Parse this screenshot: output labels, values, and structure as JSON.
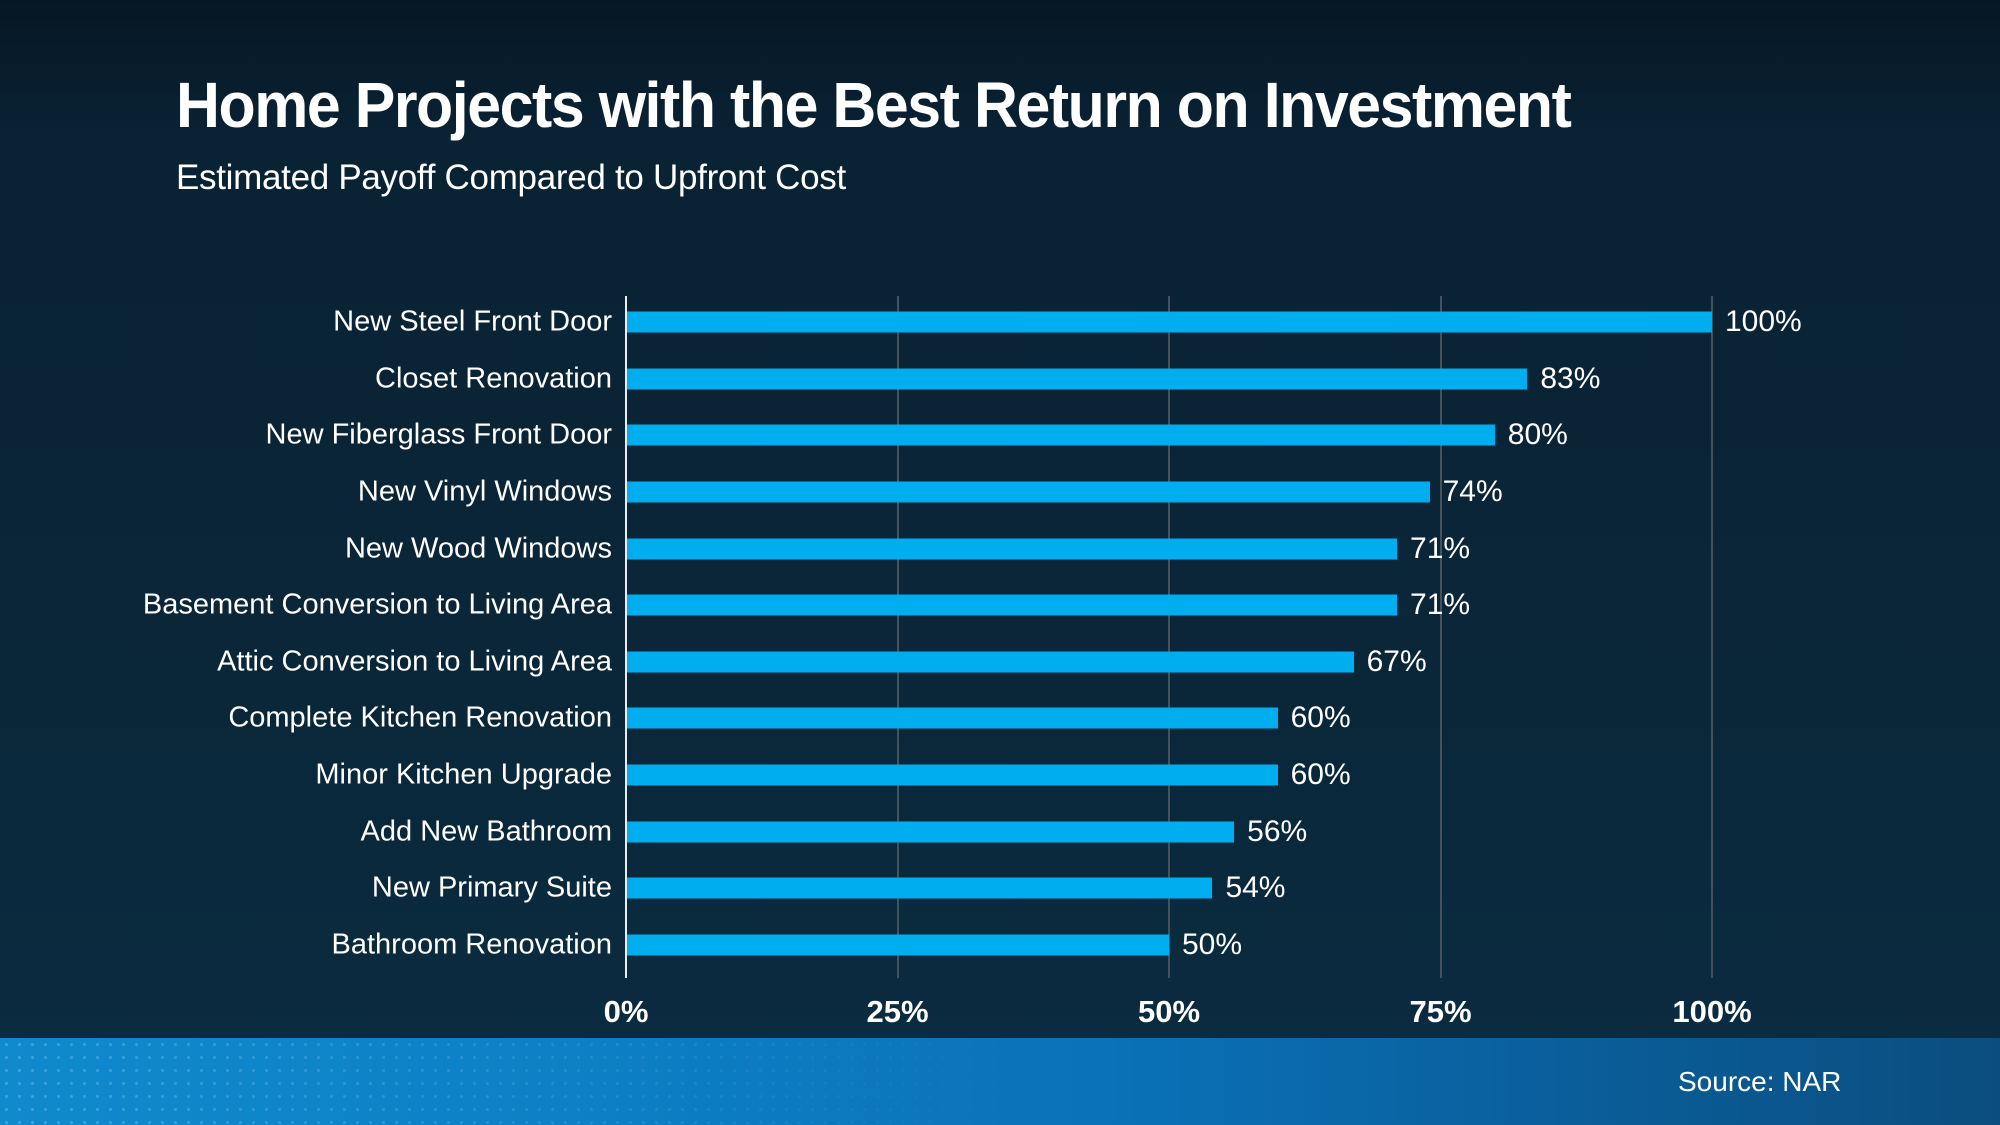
{
  "page": {
    "title": "Home Projects with the Best Return on Investment",
    "subtitle": "Estimated Payoff Compared to Upfront Cost",
    "source": "Source: NAR"
  },
  "colors": {
    "background": "#0a2436",
    "bar": "#00adee",
    "gridline": "#44525e",
    "axis_line": "#e9edf0",
    "text": "#ffffff",
    "footer_left": "#1189cd",
    "footer_mid": "#0a72b8",
    "footer_right": "#0b4d7e"
  },
  "chart_data": {
    "type": "bar",
    "orientation": "horizontal",
    "title": "Home Projects with the Best Return on Investment",
    "subtitle": "Estimated Payoff Compared to Upfront Cost",
    "xlabel": "",
    "ylabel": "",
    "xlim": [
      0,
      100
    ],
    "grid": true,
    "legend": false,
    "categories": [
      "New Steel Front Door",
      "Closet Renovation",
      "New Fiberglass Front Door",
      "New Vinyl Windows",
      "New Wood Windows",
      "Basement Conversion to Living Area",
      "Attic Conversion to Living Area",
      "Complete Kitchen Renovation",
      "Minor Kitchen Upgrade",
      "Add New Bathroom",
      "New Primary Suite",
      "Bathroom Renovation"
    ],
    "values": [
      100,
      83,
      80,
      74,
      71,
      71,
      67,
      60,
      60,
      56,
      54,
      50
    ],
    "value_labels": [
      "100%",
      "83%",
      "80%",
      "74%",
      "71%",
      "71%",
      "67%",
      "60%",
      "60%",
      "56%",
      "54%",
      "50%"
    ],
    "x_ticks": [
      {
        "value": 0,
        "label": "0%"
      },
      {
        "value": 25,
        "label": "25%"
      },
      {
        "value": 50,
        "label": "50%"
      },
      {
        "value": 75,
        "label": "75%"
      },
      {
        "value": 100,
        "label": "100%"
      }
    ]
  }
}
